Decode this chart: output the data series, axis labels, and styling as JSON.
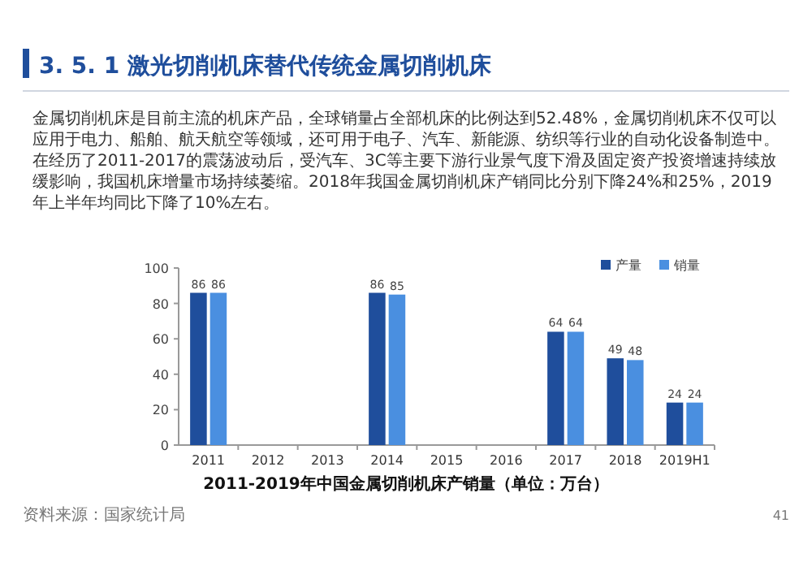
{
  "chart_data": {
    "type": "bar",
    "title": "2011-2019年中国金属切削机床产销量（单位：万台）",
    "annotations": [
      "3. 5. 1  激光切削机床替代传统金属切削机床",
      "金属切削机床是目前主流的机床产品，全球销量占全部机床的比例达到52.48%，金属切削机床不仅可以应用于电力、船舶、航天航空等领域，还可用于电子、汽车、新能源、纺织等行业的自动化设备制造中。在经历了2011-2017的震荡波动后，受汽车、3C等主要下游行业景气度下滑及固定资产投资增速持续放缓影响，我国机床增量市场持续萎缩。2018年我国金属切削机床产销同比分别下降24%和25%，2019年上半年均同比下降了10%左右。",
      "资料来源：国家统计局",
      "41"
    ],
    "categories": [
      "2011",
      "2012",
      "2013",
      "2014",
      "2015",
      "2016",
      "2017",
      "2018",
      "2019H1"
    ],
    "series": [
      {
        "name": "产量",
        "color": "#1f4e9c",
        "values": [
          86,
          null,
          null,
          86,
          null,
          null,
          64,
          49,
          24
        ]
      },
      {
        "name": "销量",
        "color": "#4a8fe0",
        "values": [
          86,
          null,
          null,
          85,
          null,
          null,
          64,
          48,
          24
        ]
      }
    ],
    "ylim": [
      0,
      100
    ],
    "yticks": [
      0,
      20,
      40,
      60,
      80,
      100
    ],
    "data_labels": true,
    "legend": "top right",
    "grid": false
  }
}
